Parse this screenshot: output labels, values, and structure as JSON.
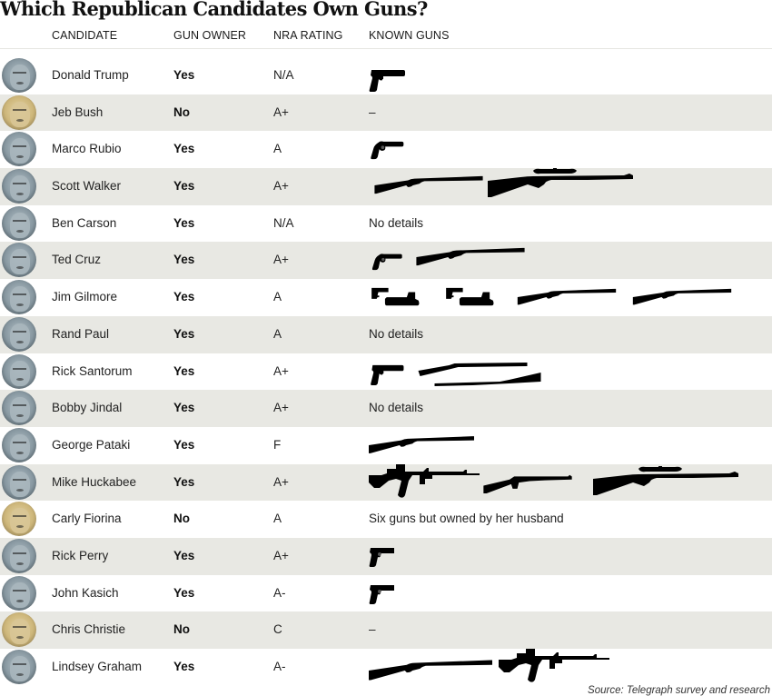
{
  "title": "Which Republican Candidates Own Guns?",
  "columns": {
    "candidate": "CANDIDATE",
    "gun_owner": "GUN OWNER",
    "nra_rating": "NRA RATING",
    "known_guns": "KNOWN GUNS"
  },
  "colors": {
    "row_alt_bg": "#e8e8e3",
    "avatar_blue": "#8fa3ad",
    "avatar_sepia": "#d9c48e",
    "gun_silhouette": "#000000"
  },
  "candidates": [
    {
      "name": "Donald Trump",
      "gun_owner": "Yes",
      "nra_rating": "N/A",
      "known_guns_text": "",
      "guns": [
        "pistol"
      ],
      "avatar_tint": "blue"
    },
    {
      "name": "Jeb Bush",
      "gun_owner": "No",
      "nra_rating": "A+",
      "known_guns_text": "–",
      "guns": [],
      "avatar_tint": "sepia"
    },
    {
      "name": "Marco Rubio",
      "gun_owner": "Yes",
      "nra_rating": "A",
      "known_guns_text": "",
      "guns": [
        "revolver"
      ],
      "avatar_tint": "blue"
    },
    {
      "name": "Scott Walker",
      "gun_owner": "Yes",
      "nra_rating": "A+",
      "known_guns_text": "",
      "guns": [
        "shotgun",
        "scoped-rifle"
      ],
      "avatar_tint": "blue"
    },
    {
      "name": "Ben Carson",
      "gun_owner": "Yes",
      "nra_rating": "N/A",
      "known_guns_text": "No details",
      "guns": [],
      "avatar_tint": "blue"
    },
    {
      "name": "Ted Cruz",
      "gun_owner": "Yes",
      "nra_rating": "A+",
      "known_guns_text": "",
      "guns": [
        "revolver",
        "shotgun"
      ],
      "avatar_tint": "blue"
    },
    {
      "name": "Jim Gilmore",
      "gun_owner": "Yes",
      "nra_rating": "A",
      "known_guns_text": "",
      "guns": [
        "pistol-pair",
        "pistol-pair",
        "shotgun",
        "shotgun"
      ],
      "avatar_tint": "blue"
    },
    {
      "name": "Rand Paul",
      "gun_owner": "Yes",
      "nra_rating": "A",
      "known_guns_text": "No details",
      "guns": [],
      "avatar_tint": "blue"
    },
    {
      "name": "Rick Santorum",
      "gun_owner": "Yes",
      "nra_rating": "A+",
      "known_guns_text": "",
      "guns": [
        "pistol",
        "shotgun-pair"
      ],
      "avatar_tint": "blue"
    },
    {
      "name": "Bobby Jindal",
      "gun_owner": "Yes",
      "nra_rating": "A+",
      "known_guns_text": "No details",
      "guns": [],
      "avatar_tint": "blue"
    },
    {
      "name": "George Pataki",
      "gun_owner": "Yes",
      "nra_rating": "F",
      "known_guns_text": "",
      "guns": [
        "shotgun"
      ],
      "avatar_tint": "blue"
    },
    {
      "name": "Mike Huckabee",
      "gun_owner": "Yes",
      "nra_rating": "A+",
      "known_guns_text": "",
      "guns": [
        "assault-rifle",
        "tactical-shotgun",
        "scoped-rifle"
      ],
      "avatar_tint": "blue"
    },
    {
      "name": "Carly Fiorina",
      "gun_owner": "No",
      "nra_rating": "A",
      "known_guns_text": "Six guns but owned by her husband",
      "guns": [],
      "avatar_tint": "sepia"
    },
    {
      "name": "Rick Perry",
      "gun_owner": "Yes",
      "nra_rating": "A+",
      "known_guns_text": "",
      "guns": [
        "compact-pistol"
      ],
      "avatar_tint": "blue"
    },
    {
      "name": "John Kasich",
      "gun_owner": "Yes",
      "nra_rating": "A-",
      "known_guns_text": "",
      "guns": [
        "compact-pistol"
      ],
      "avatar_tint": "blue"
    },
    {
      "name": "Chris Christie",
      "gun_owner": "No",
      "nra_rating": "C",
      "known_guns_text": "–",
      "guns": [],
      "avatar_tint": "sepia"
    },
    {
      "name": "Lindsey Graham",
      "gun_owner": "Yes",
      "nra_rating": "A-",
      "known_guns_text": "",
      "guns": [
        "shotgun",
        "assault-rifle"
      ],
      "avatar_tint": "blue"
    }
  ],
  "source": "Source: Telegraph survey and research"
}
